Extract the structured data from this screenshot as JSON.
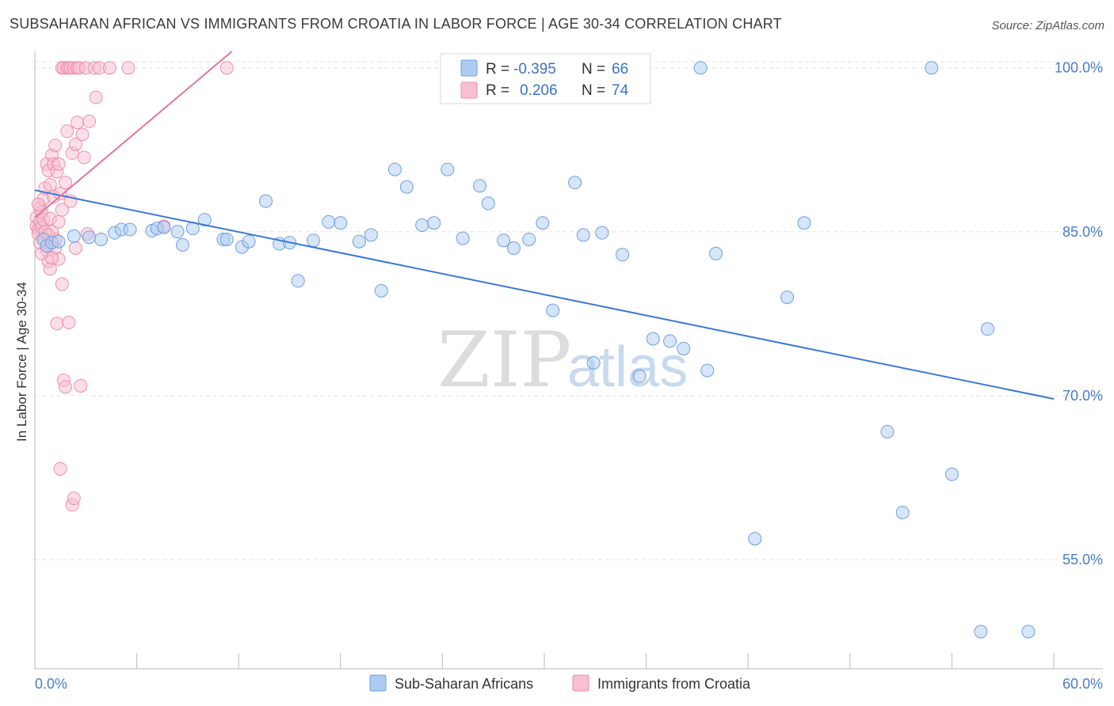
{
  "title": "SUBSAHARAN AFRICAN VS IMMIGRANTS FROM CROATIA IN LABOR FORCE | AGE 30-34 CORRELATION CHART",
  "source": "Source: ZipAtlas.com",
  "watermark": {
    "zip": "ZIP",
    "atlas": "atlas"
  },
  "legend": {
    "r_label": "R =",
    "n_label": "N =",
    "series": [
      {
        "r": "-0.395",
        "n": "66"
      },
      {
        "r": "0.206",
        "n": "74"
      }
    ]
  },
  "colors": {
    "blue_fill": "#aecbf2",
    "blue_stroke": "#6f9fe0",
    "blue_line": "#3a78d4",
    "pink_fill": "#f7bfd0",
    "pink_stroke": "#ee8fae",
    "pink_line": "#e4769c",
    "grid": "#e3e3e3",
    "tick_text": "#4a7cc9"
  },
  "chart_data": {
    "type": "scatter",
    "title": "SUBSAHARAN AFRICAN VS IMMIGRANTS FROM CROATIA IN LABOR FORCE | AGE 30-34 CORRELATION CHART",
    "xlabel": "",
    "ylabel": "In Labor Force | Age 30-34",
    "xlim": [
      0,
      60
    ],
    "ylim": [
      45,
      101.5
    ],
    "x_tick_labels": [
      "0.0%",
      "60.0%"
    ],
    "y_ticks": [
      55,
      70,
      85,
      100
    ],
    "y_tick_labels": [
      "55.0%",
      "70.0%",
      "85.0%",
      "100.0%"
    ],
    "grid": true,
    "legend_position": "top-center",
    "series": [
      {
        "name": "Sub-Saharan Africans",
        "color": "#aecbf2",
        "trend": {
          "x": [
            0.0,
            60.0
          ],
          "y": [
            88.8,
            69.7
          ]
        },
        "points": [
          [
            0.5,
            84.3
          ],
          [
            0.7,
            83.7
          ],
          [
            1.0,
            84.0
          ],
          [
            1.4,
            84.1
          ],
          [
            2.3,
            84.6
          ],
          [
            3.2,
            84.5
          ],
          [
            3.9,
            84.3
          ],
          [
            4.7,
            84.9
          ],
          [
            5.1,
            85.2
          ],
          [
            5.6,
            85.2
          ],
          [
            6.9,
            85.1
          ],
          [
            7.2,
            85.3
          ],
          [
            7.6,
            85.4
          ],
          [
            8.4,
            85.0
          ],
          [
            8.7,
            83.8
          ],
          [
            9.3,
            85.3
          ],
          [
            10.0,
            86.1
          ],
          [
            11.1,
            84.3
          ],
          [
            11.3,
            84.3
          ],
          [
            12.2,
            83.6
          ],
          [
            12.6,
            84.1
          ],
          [
            13.6,
            87.8
          ],
          [
            14.4,
            83.9
          ],
          [
            15.0,
            84.0
          ],
          [
            15.5,
            80.5
          ],
          [
            16.4,
            84.2
          ],
          [
            17.3,
            85.9
          ],
          [
            18.0,
            85.8
          ],
          [
            19.1,
            84.1
          ],
          [
            19.8,
            84.7
          ],
          [
            20.4,
            79.6
          ],
          [
            21.2,
            90.7
          ],
          [
            21.9,
            89.1
          ],
          [
            22.8,
            85.6
          ],
          [
            23.5,
            85.8
          ],
          [
            24.3,
            90.7
          ],
          [
            25.2,
            84.4
          ],
          [
            26.2,
            89.2
          ],
          [
            26.7,
            87.6
          ],
          [
            27.6,
            84.2
          ],
          [
            28.2,
            83.5
          ],
          [
            29.1,
            84.3
          ],
          [
            29.9,
            85.8
          ],
          [
            30.5,
            77.8
          ],
          [
            31.8,
            89.5
          ],
          [
            32.3,
            84.7
          ],
          [
            32.9,
            73.0
          ],
          [
            33.4,
            84.9
          ],
          [
            33.8,
            100.0
          ],
          [
            34.6,
            82.9
          ],
          [
            35.6,
            71.8
          ],
          [
            36.4,
            75.2
          ],
          [
            37.4,
            75.0
          ],
          [
            38.2,
            74.3
          ],
          [
            39.2,
            100.0
          ],
          [
            39.6,
            72.3
          ],
          [
            40.1,
            83.0
          ],
          [
            44.3,
            79.0
          ],
          [
            45.3,
            85.8
          ],
          [
            50.2,
            66.7
          ],
          [
            51.1,
            59.3
          ],
          [
            52.8,
            100.0
          ],
          [
            54.0,
            62.8
          ],
          [
            56.1,
            76.1
          ],
          [
            42.4,
            56.9
          ],
          [
            55.7,
            48.4
          ],
          [
            58.5,
            48.4
          ]
        ]
      },
      {
        "name": "Immigrants from Croatia",
        "color": "#f7bfd0",
        "trend": {
          "x": [
            0.0,
            11.6
          ],
          "y": [
            86.3,
            101.5
          ]
        },
        "points": [
          [
            0.1,
            86.3
          ],
          [
            0.1,
            85.5
          ],
          [
            0.2,
            85.2
          ],
          [
            0.2,
            84.8
          ],
          [
            0.3,
            85.9
          ],
          [
            0.3,
            87.2
          ],
          [
            0.4,
            86.8
          ],
          [
            0.4,
            85.4
          ],
          [
            0.5,
            88.0
          ],
          [
            0.5,
            86.1
          ],
          [
            0.6,
            89.0
          ],
          [
            0.6,
            84.4
          ],
          [
            0.7,
            91.2
          ],
          [
            0.7,
            83.3
          ],
          [
            0.8,
            90.6
          ],
          [
            0.8,
            82.3
          ],
          [
            0.9,
            81.6
          ],
          [
            0.9,
            89.3
          ],
          [
            1.0,
            92.0
          ],
          [
            1.0,
            85.0
          ],
          [
            1.1,
            91.2
          ],
          [
            1.1,
            88.2
          ],
          [
            1.2,
            92.9
          ],
          [
            1.2,
            83.5
          ],
          [
            1.3,
            90.5
          ],
          [
            1.3,
            76.6
          ],
          [
            1.4,
            91.2
          ],
          [
            1.4,
            82.5
          ],
          [
            1.5,
            88.5
          ],
          [
            1.5,
            63.3
          ],
          [
            1.6,
            100.0
          ],
          [
            1.6,
            80.2
          ],
          [
            1.7,
            100.0
          ],
          [
            1.7,
            71.4
          ],
          [
            1.8,
            89.5
          ],
          [
            1.8,
            70.8
          ],
          [
            1.9,
            100.0
          ],
          [
            1.9,
            94.2
          ],
          [
            2.0,
            100.0
          ],
          [
            2.0,
            76.7
          ],
          [
            2.1,
            100.0
          ],
          [
            2.1,
            87.8
          ],
          [
            2.2,
            92.2
          ],
          [
            2.2,
            60.0
          ],
          [
            2.3,
            100.0
          ],
          [
            2.3,
            60.6
          ],
          [
            2.4,
            93.0
          ],
          [
            2.4,
            83.5
          ],
          [
            2.5,
            100.0
          ],
          [
            2.5,
            95.0
          ],
          [
            2.6,
            100.0
          ],
          [
            2.7,
            70.9
          ],
          [
            2.8,
            93.9
          ],
          [
            2.9,
            91.8
          ],
          [
            3.0,
            100.0
          ],
          [
            3.1,
            84.8
          ],
          [
            3.2,
            95.1
          ],
          [
            3.5,
            100.0
          ],
          [
            3.6,
            97.3
          ],
          [
            3.8,
            100.0
          ],
          [
            4.4,
            100.0
          ],
          [
            5.5,
            100.0
          ],
          [
            7.6,
            85.5
          ],
          [
            11.3,
            100.0
          ],
          [
            0.2,
            87.5
          ],
          [
            0.3,
            84.0
          ],
          [
            0.6,
            85.0
          ],
          [
            0.9,
            86.2
          ],
          [
            1.0,
            82.6
          ],
          [
            1.2,
            84.3
          ],
          [
            1.4,
            85.9
          ],
          [
            1.6,
            87.0
          ],
          [
            0.4,
            83.0
          ],
          [
            0.8,
            84.7
          ]
        ]
      }
    ]
  }
}
